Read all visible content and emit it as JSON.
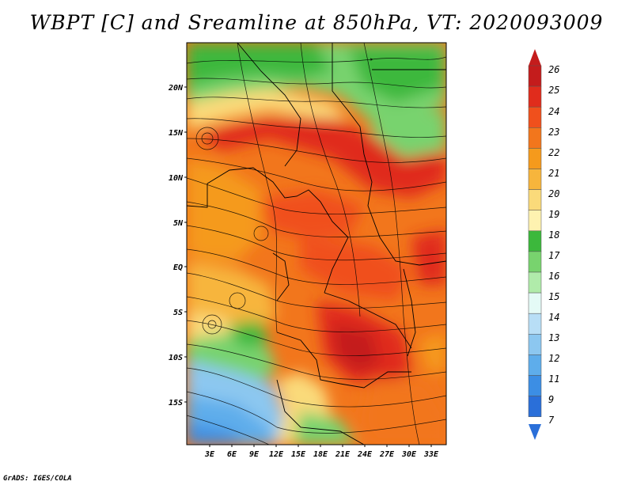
{
  "title": "WBPT [C] and Sreamline at 850hPa, VT: 2020093009",
  "credit": "GrADS: IGES/COLA",
  "map": {
    "lat_labels": [
      "20N",
      "15N",
      "10N",
      "5N",
      "EQ",
      "5S",
      "10S",
      "15S"
    ],
    "lon_labels": [
      "3E",
      "6E",
      "9E",
      "12E",
      "15E",
      "18E",
      "21E",
      "24E",
      "27E",
      "30E",
      "33E"
    ]
  },
  "colorbar": {
    "levels": [
      "26",
      "25",
      "24",
      "23",
      "22",
      "21",
      "20",
      "19",
      "18",
      "17",
      "16",
      "15",
      "14",
      "13",
      "12",
      "11",
      "9",
      "7"
    ],
    "colors": [
      "#c41c1c",
      "#e02c1c",
      "#f0501c",
      "#f2761c",
      "#f59a1c",
      "#f7b53c",
      "#fada7a",
      "#fef2b0",
      "#3cb83c",
      "#78d36e",
      "#b0ebaa",
      "#e4faf6",
      "#b8def6",
      "#8cc7f0",
      "#5eadeb",
      "#3c8ee4",
      "#2a6fd9"
    ]
  }
}
